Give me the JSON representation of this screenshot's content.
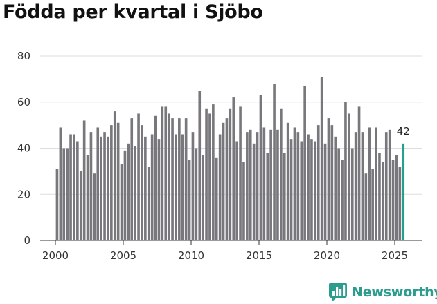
{
  "title": "Födda per kvartal i Sjöbo",
  "brand": {
    "name": "Newsworthy",
    "icon": "bar-chart-bubble-icon",
    "color": "#2a9d8f"
  },
  "chart_data": {
    "type": "bar",
    "title": "Födda per kvartal i Sjöbo",
    "xlabel": "",
    "ylabel": "",
    "ylim": [
      0,
      80
    ],
    "yticks": [
      0,
      20,
      40,
      60,
      80
    ],
    "xticks": [
      2000,
      2005,
      2010,
      2015,
      2020,
      2025
    ],
    "x_start": 2000,
    "periods_per_year": 4,
    "grid": true,
    "bar_color": "#78777c",
    "highlight_color": "#2a9d8f",
    "highlight_index": 102,
    "highlight_label": "42",
    "values": [
      31,
      49,
      40,
      40,
      46,
      46,
      43,
      30,
      52,
      37,
      47,
      29,
      49,
      45,
      47,
      45,
      50,
      56,
      51,
      33,
      39,
      42,
      53,
      41,
      55,
      50,
      45,
      32,
      46,
      54,
      44,
      58,
      58,
      55,
      53,
      46,
      53,
      46,
      53,
      35,
      47,
      40,
      65,
      37,
      57,
      55,
      59,
      36,
      46,
      51,
      53,
      57,
      62,
      43,
      58,
      34,
      47,
      48,
      42,
      47,
      63,
      49,
      38,
      48,
      68,
      48,
      57,
      38,
      51,
      44,
      49,
      47,
      43,
      67,
      46,
      44,
      43,
      50,
      71,
      42,
      53,
      50,
      45,
      40,
      35,
      60,
      55,
      40,
      47,
      58,
      47,
      29,
      49,
      31,
      49,
      38,
      34,
      47,
      48,
      35,
      37,
      32,
      42
    ]
  }
}
